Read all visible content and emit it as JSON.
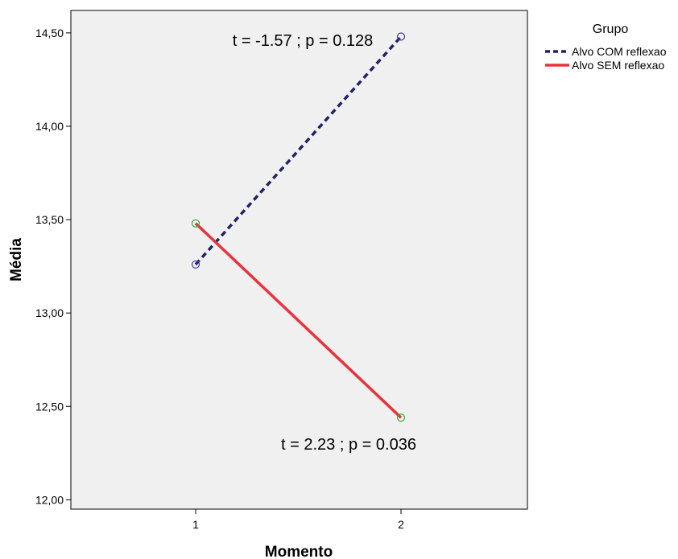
{
  "chart_data": {
    "type": "line",
    "xlabel": "Momento",
    "ylabel": "Média",
    "categories": [
      "1",
      "2"
    ],
    "ylim": [
      11.95,
      14.62
    ],
    "yticks": [
      "12,00",
      "12,50",
      "13,00",
      "13,50",
      "14,00",
      "14,50"
    ],
    "ytick_values": [
      12.0,
      12.5,
      13.0,
      13.5,
      14.0,
      14.5
    ],
    "grid": false,
    "background": "#f0f0f0",
    "legend": {
      "title": "Grupo",
      "placement": "top-right, outside plot"
    },
    "series": [
      {
        "name": "Alvo COM reflexao",
        "values": [
          13.26,
          14.48
        ],
        "color": "#1f2468",
        "marker_color": "#3a3ab0",
        "line_style": "dashed"
      },
      {
        "name": "Alvo SEM reflexao",
        "values": [
          13.48,
          12.44
        ],
        "color": "#e8323c",
        "marker_color": "#30b030",
        "line_style": "solid"
      }
    ],
    "annotations": [
      {
        "text": "t = -1.57 ; p = 0.128",
        "series": 0
      },
      {
        "text": "t = 2.23 ; p = 0.036",
        "series": 1
      }
    ]
  }
}
